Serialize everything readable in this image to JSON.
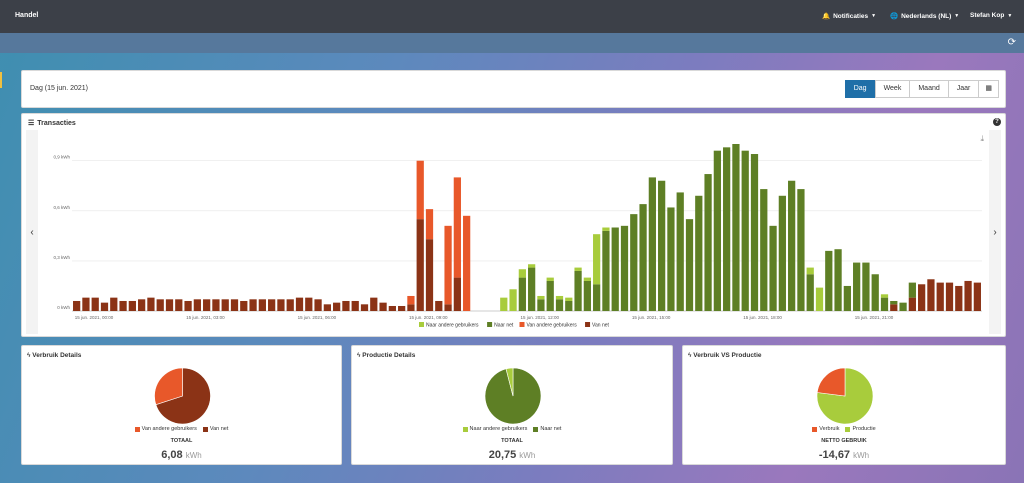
{
  "topbar": {
    "brand": "Handel",
    "notifications": "Notificaties",
    "language": "Nederlands (NL)",
    "user": "Stefan Kop"
  },
  "period": {
    "title": "Dag (15 jun. 2021)",
    "buttons": [
      "Dag",
      "Week",
      "Maand",
      "Jaar"
    ]
  },
  "chart": {
    "title": "Transacties",
    "help": "?"
  },
  "colors": {
    "naar_andere": "#a8cc3c",
    "naar_net": "#5e7f25",
    "van_andere": "#e8582a",
    "van_net": "#8b3316",
    "accent": "#1f6fa8"
  },
  "chart_data": {
    "type": "bar",
    "stacked": true,
    "ylabel": "",
    "ylim": [
      0,
      1.0
    ],
    "yticks": [
      "0 kWh",
      "0,3 kWh",
      "0,6 kWh",
      "0,9 kWh"
    ],
    "ytick_values": [
      0,
      0.3,
      0.6,
      0.9
    ],
    "xticks": [
      "15 jun. 2021, 00:00",
      "15 jun. 2021, 03:00",
      "15 jun. 2021, 06:00",
      "15 jun. 2021, 09:00",
      "15 jun. 2021, 12:00",
      "15 jun. 2021, 15:00",
      "15 jun. 2021, 18:00",
      "15 jun. 2021, 21:00"
    ],
    "legend": [
      "Naar andere gebruikers",
      "Naar net",
      "Van andere gebruikers",
      "Van net"
    ],
    "legend_position": "bottom",
    "series": [
      {
        "name": "Naar andere gebruikers",
        "values": [
          0,
          0,
          0,
          0,
          0,
          0,
          0,
          0,
          0,
          0,
          0,
          0,
          0,
          0,
          0,
          0,
          0,
          0,
          0,
          0,
          0,
          0,
          0,
          0,
          0,
          0,
          0,
          0,
          0,
          0,
          0,
          0,
          0,
          0,
          0,
          0,
          0,
          0,
          0,
          0,
          0,
          0,
          0,
          0,
          0,
          0,
          0.08,
          0.13,
          0.05,
          0.02,
          0.02,
          0.02,
          0.02,
          0.02,
          0.02,
          0.02,
          0.3,
          0.02,
          0,
          0,
          0,
          0,
          0,
          0,
          0,
          0,
          0,
          0,
          0,
          0,
          0,
          0,
          0,
          0,
          0,
          0,
          0,
          0,
          0,
          0.04,
          0.14,
          0,
          0,
          0,
          0,
          0,
          0,
          0.02,
          0,
          0,
          0,
          0,
          0,
          0,
          0,
          0,
          0,
          0
        ]
      },
      {
        "name": "Naar net",
        "values": [
          0,
          0,
          0,
          0,
          0,
          0,
          0,
          0,
          0,
          0,
          0,
          0,
          0,
          0,
          0,
          0,
          0,
          0,
          0,
          0,
          0,
          0,
          0,
          0,
          0,
          0,
          0,
          0,
          0,
          0,
          0,
          0,
          0,
          0,
          0,
          0,
          0,
          0,
          0,
          0,
          0,
          0,
          0,
          0,
          0,
          0,
          0,
          0,
          0.2,
          0.26,
          0.07,
          0.18,
          0.07,
          0.06,
          0.24,
          0.18,
          0.16,
          0.48,
          0.5,
          0.51,
          0.58,
          0.64,
          0.8,
          0.78,
          0.62,
          0.71,
          0.55,
          0.69,
          0.82,
          0.96,
          0.98,
          1.0,
          0.96,
          0.94,
          0.73,
          0.51,
          0.69,
          0.78,
          0.73,
          0.22,
          0.0,
          0.36,
          0.37,
          0.15,
          0.29,
          0.29,
          0.22,
          0.08,
          0.02,
          0.05,
          0.09,
          0,
          0,
          0,
          0,
          0,
          0,
          0
        ]
      },
      {
        "name": "Van andere gebruikers",
        "values": [
          0,
          0,
          0,
          0,
          0,
          0,
          0,
          0,
          0,
          0,
          0,
          0,
          0,
          0,
          0,
          0,
          0,
          0,
          0,
          0,
          0,
          0,
          0,
          0,
          0,
          0,
          0,
          0,
          0,
          0,
          0,
          0,
          0,
          0,
          0,
          0,
          0.05,
          0.35,
          0.18,
          0,
          0.47,
          0.6,
          0.57,
          0,
          0,
          0,
          0,
          0,
          0,
          0,
          0,
          0,
          0,
          0,
          0,
          0,
          0,
          0,
          0,
          0,
          0,
          0,
          0,
          0,
          0,
          0,
          0,
          0,
          0,
          0,
          0,
          0,
          0,
          0,
          0,
          0,
          0,
          0,
          0,
          0,
          0,
          0,
          0,
          0,
          0,
          0,
          0,
          0,
          0,
          0,
          0,
          0,
          0,
          0,
          0,
          0,
          0,
          0
        ]
      },
      {
        "name": "Van net",
        "values": [
          0.06,
          0.08,
          0.08,
          0.05,
          0.08,
          0.06,
          0.06,
          0.07,
          0.08,
          0.07,
          0.07,
          0.07,
          0.06,
          0.07,
          0.07,
          0.07,
          0.07,
          0.07,
          0.06,
          0.07,
          0.07,
          0.07,
          0.07,
          0.07,
          0.08,
          0.08,
          0.07,
          0.04,
          0.05,
          0.06,
          0.06,
          0.04,
          0.08,
          0.05,
          0.03,
          0.03,
          0.04,
          0.55,
          0.43,
          0.06,
          0.04,
          0.2,
          0,
          0.0,
          0,
          0,
          0,
          0,
          0,
          0,
          0,
          0,
          0,
          0,
          0,
          0,
          0,
          0,
          0,
          0,
          0,
          0,
          0,
          0,
          0,
          0,
          0,
          0,
          0,
          0,
          0,
          0,
          0,
          0,
          0,
          0,
          0,
          0,
          0,
          0,
          0,
          0,
          0,
          0,
          0,
          0,
          0,
          0,
          0.04,
          0,
          0.08,
          0.16,
          0.19,
          0.17,
          0.17,
          0.15,
          0.18,
          0.17
        ]
      }
    ]
  },
  "pies": [
    {
      "title": "Verbruik Details",
      "legend": [
        "Van andere gebruikers",
        "Van net"
      ],
      "caption": "TOTAAL",
      "value": "6,08",
      "unit": "kWh",
      "chart_data": {
        "type": "pie",
        "labels": [
          "Van andere gebruikers",
          "Van net"
        ],
        "values": [
          30,
          70
        ],
        "colors": [
          "#e8582a",
          "#8b3316"
        ]
      }
    },
    {
      "title": "Productie Details",
      "legend": [
        "Naar andere gebruikers",
        "Naar net"
      ],
      "caption": "TOTAAL",
      "value": "20,75",
      "unit": "kWh",
      "chart_data": {
        "type": "pie",
        "labels": [
          "Naar andere gebruikers",
          "Naar net"
        ],
        "values": [
          4,
          96
        ],
        "colors": [
          "#a8cc3c",
          "#5e7f25"
        ]
      }
    },
    {
      "title": "Verbruik VS Productie",
      "legend": [
        "Verbruik",
        "Productie"
      ],
      "caption": "NETTO GEBRUIK",
      "value": "-14,67",
      "unit": "kWh",
      "chart_data": {
        "type": "pie",
        "labels": [
          "Verbruik",
          "Productie"
        ],
        "values": [
          23,
          77
        ],
        "colors": [
          "#e8582a",
          "#a8cc3c"
        ]
      }
    }
  ]
}
